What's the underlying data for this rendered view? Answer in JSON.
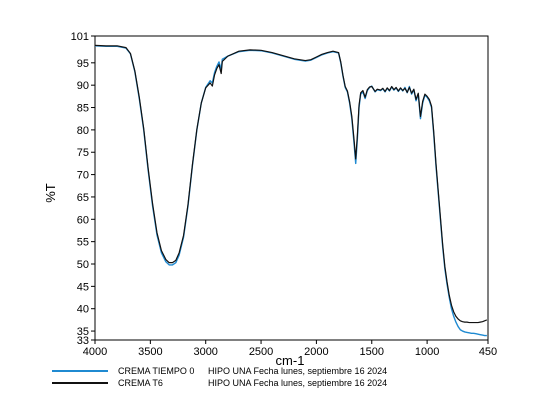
{
  "chart_data": {
    "type": "line",
    "title": "",
    "xlabel": "cm-1",
    "ylabel": "%T",
    "xlim": [
      4000,
      450
    ],
    "ylim": [
      33,
      101
    ],
    "x_ticks": [
      4000,
      3500,
      3000,
      2500,
      2000,
      1500,
      1000,
      450
    ],
    "x_tick_labels": [
      "4000",
      "3500",
      "3000",
      "2500",
      "2000",
      "1500",
      "1000",
      "450"
    ],
    "y_ticks": [
      101,
      95,
      90,
      85,
      80,
      75,
      70,
      65,
      60,
      55,
      50,
      45,
      40,
      35,
      33
    ],
    "y_tick_labels": [
      "101",
      "95",
      "90",
      "85",
      "80",
      "75",
      "70",
      "65",
      "60",
      "55",
      "50",
      "45",
      "40",
      "35",
      "33"
    ],
    "grid": false,
    "legend_position": "bottom",
    "series": [
      {
        "name": "CREMA TIEMPO 0",
        "description": "HIPO UNA Fecha lunes, septiembre 16 2024",
        "color": "#1f8ad1",
        "points": [
          [
            4000,
            98.8
          ],
          [
            3900,
            98.7
          ],
          [
            3800,
            98.7
          ],
          [
            3720,
            98.3
          ],
          [
            3680,
            97.0
          ],
          [
            3640,
            93.0
          ],
          [
            3600,
            87.0
          ],
          [
            3560,
            80.0
          ],
          [
            3520,
            71.0
          ],
          [
            3480,
            63.0
          ],
          [
            3440,
            56.5
          ],
          [
            3400,
            52.5
          ],
          [
            3360,
            50.5
          ],
          [
            3330,
            49.8
          ],
          [
            3300,
            49.8
          ],
          [
            3270,
            50.3
          ],
          [
            3240,
            52.0
          ],
          [
            3200,
            56.0
          ],
          [
            3160,
            63.0
          ],
          [
            3120,
            72.0
          ],
          [
            3080,
            80.0
          ],
          [
            3040,
            86.0
          ],
          [
            3000,
            89.5
          ],
          [
            2960,
            91.0
          ],
          [
            2940,
            90.5
          ],
          [
            2920,
            92.8
          ],
          [
            2900,
            94.2
          ],
          [
            2880,
            95.2
          ],
          [
            2860,
            93.5
          ],
          [
            2850,
            95.8
          ],
          [
            2800,
            96.5
          ],
          [
            2700,
            97.5
          ],
          [
            2600,
            97.8
          ],
          [
            2500,
            97.7
          ],
          [
            2400,
            97.2
          ],
          [
            2300,
            96.5
          ],
          [
            2200,
            95.8
          ],
          [
            2100,
            95.4
          ],
          [
            2050,
            95.6
          ],
          [
            2000,
            96.2
          ],
          [
            1950,
            96.8
          ],
          [
            1900,
            97.2
          ],
          [
            1850,
            97.5
          ],
          [
            1800,
            97.2
          ],
          [
            1780,
            95.0
          ],
          [
            1760,
            92.0
          ],
          [
            1740,
            89.5
          ],
          [
            1720,
            88.5
          ],
          [
            1700,
            86.0
          ],
          [
            1680,
            82.5
          ],
          [
            1660,
            77.0
          ],
          [
            1645,
            72.5
          ],
          [
            1630,
            78.0
          ],
          [
            1615,
            85.0
          ],
          [
            1600,
            88.0
          ],
          [
            1580,
            88.5
          ],
          [
            1560,
            87.0
          ],
          [
            1540,
            88.8
          ],
          [
            1520,
            89.5
          ],
          [
            1500,
            89.8
          ],
          [
            1470,
            88.5
          ],
          [
            1450,
            89.0
          ],
          [
            1420,
            88.8
          ],
          [
            1400,
            89.2
          ],
          [
            1380,
            88.5
          ],
          [
            1360,
            89.3
          ],
          [
            1340,
            88.7
          ],
          [
            1320,
            89.6
          ],
          [
            1300,
            88.9
          ],
          [
            1280,
            89.4
          ],
          [
            1260,
            88.6
          ],
          [
            1240,
            89.3
          ],
          [
            1220,
            88.7
          ],
          [
            1200,
            89.5
          ],
          [
            1180,
            88.3
          ],
          [
            1160,
            89.7
          ],
          [
            1140,
            88.0
          ],
          [
            1120,
            89.0
          ],
          [
            1100,
            86.5
          ],
          [
            1080,
            88.0
          ],
          [
            1060,
            82.5
          ],
          [
            1040,
            86.0
          ],
          [
            1020,
            87.8
          ],
          [
            1000,
            87.3
          ],
          [
            980,
            86.5
          ],
          [
            960,
            85.0
          ],
          [
            940,
            79.0
          ],
          [
            920,
            72.0
          ],
          [
            900,
            66.0
          ],
          [
            880,
            60.0
          ],
          [
            860,
            54.0
          ],
          [
            840,
            49.0
          ],
          [
            820,
            45.5
          ],
          [
            800,
            42.5
          ],
          [
            780,
            40.0
          ],
          [
            760,
            38.3
          ],
          [
            740,
            37.0
          ],
          [
            720,
            36.0
          ],
          [
            700,
            35.3
          ],
          [
            680,
            35.0
          ],
          [
            660,
            34.8
          ],
          [
            640,
            34.7
          ],
          [
            620,
            34.6
          ],
          [
            600,
            34.5
          ],
          [
            580,
            34.5
          ],
          [
            560,
            34.4
          ],
          [
            540,
            34.3
          ],
          [
            520,
            34.2
          ],
          [
            500,
            34.1
          ],
          [
            480,
            34.0
          ],
          [
            460,
            34.0
          ]
        ]
      },
      {
        "name": "CREMA T6",
        "description": "HIPO UNA Fecha lunes, septiembre 16 2024",
        "color": "#111111",
        "points": [
          [
            4000,
            98.9
          ],
          [
            3900,
            98.8
          ],
          [
            3800,
            98.8
          ],
          [
            3720,
            98.4
          ],
          [
            3680,
            97.1
          ],
          [
            3640,
            93.2
          ],
          [
            3600,
            87.3
          ],
          [
            3560,
            80.3
          ],
          [
            3520,
            71.4
          ],
          [
            3480,
            63.5
          ],
          [
            3440,
            57.0
          ],
          [
            3400,
            53.0
          ],
          [
            3360,
            51.0
          ],
          [
            3330,
            50.3
          ],
          [
            3300,
            50.3
          ],
          [
            3270,
            50.8
          ],
          [
            3240,
            52.5
          ],
          [
            3200,
            56.4
          ],
          [
            3160,
            63.3
          ],
          [
            3120,
            72.2
          ],
          [
            3080,
            80.1
          ],
          [
            3040,
            86.0
          ],
          [
            3000,
            89.4
          ],
          [
            2960,
            90.5
          ],
          [
            2940,
            89.8
          ],
          [
            2920,
            92.3
          ],
          [
            2900,
            93.7
          ],
          [
            2880,
            94.6
          ],
          [
            2860,
            92.6
          ],
          [
            2850,
            95.3
          ],
          [
            2800,
            96.5
          ],
          [
            2700,
            97.6
          ],
          [
            2600,
            97.9
          ],
          [
            2500,
            97.8
          ],
          [
            2400,
            97.3
          ],
          [
            2300,
            96.6
          ],
          [
            2200,
            95.9
          ],
          [
            2100,
            95.5
          ],
          [
            2050,
            95.7
          ],
          [
            2000,
            96.3
          ],
          [
            1950,
            96.9
          ],
          [
            1900,
            97.3
          ],
          [
            1850,
            97.6
          ],
          [
            1800,
            97.3
          ],
          [
            1780,
            95.2
          ],
          [
            1760,
            92.2
          ],
          [
            1740,
            89.7
          ],
          [
            1720,
            88.7
          ],
          [
            1700,
            86.3
          ],
          [
            1680,
            83.0
          ],
          [
            1660,
            77.8
          ],
          [
            1645,
            73.5
          ],
          [
            1630,
            78.8
          ],
          [
            1615,
            85.5
          ],
          [
            1600,
            88.3
          ],
          [
            1580,
            88.8
          ],
          [
            1560,
            87.3
          ],
          [
            1540,
            89.0
          ],
          [
            1520,
            89.6
          ],
          [
            1500,
            89.7
          ],
          [
            1470,
            88.6
          ],
          [
            1450,
            89.1
          ],
          [
            1420,
            88.9
          ],
          [
            1400,
            89.3
          ],
          [
            1380,
            88.6
          ],
          [
            1360,
            89.4
          ],
          [
            1340,
            88.8
          ],
          [
            1320,
            89.7
          ],
          [
            1300,
            89.0
          ],
          [
            1280,
            89.5
          ],
          [
            1260,
            88.7
          ],
          [
            1240,
            89.4
          ],
          [
            1220,
            88.8
          ],
          [
            1200,
            89.3
          ],
          [
            1180,
            88.4
          ],
          [
            1160,
            89.5
          ],
          [
            1140,
            88.2
          ],
          [
            1120,
            89.1
          ],
          [
            1100,
            86.8
          ],
          [
            1080,
            88.2
          ],
          [
            1060,
            83.0
          ],
          [
            1040,
            86.4
          ],
          [
            1020,
            88.0
          ],
          [
            1000,
            87.5
          ],
          [
            980,
            86.8
          ],
          [
            960,
            85.3
          ],
          [
            940,
            79.5
          ],
          [
            920,
            72.5
          ],
          [
            900,
            66.5
          ],
          [
            880,
            60.5
          ],
          [
            860,
            54.5
          ],
          [
            840,
            49.5
          ],
          [
            820,
            46.0
          ],
          [
            800,
            43.0
          ],
          [
            780,
            40.8
          ],
          [
            760,
            39.3
          ],
          [
            740,
            38.3
          ],
          [
            720,
            37.7
          ],
          [
            700,
            37.3
          ],
          [
            680,
            37.1
          ],
          [
            660,
            37.0
          ],
          [
            640,
            37.0
          ],
          [
            620,
            36.9
          ],
          [
            600,
            36.9
          ],
          [
            580,
            36.9
          ],
          [
            560,
            36.9
          ],
          [
            540,
            36.9
          ],
          [
            520,
            37.0
          ],
          [
            500,
            37.1
          ],
          [
            480,
            37.3
          ],
          [
            460,
            37.5
          ]
        ]
      }
    ]
  }
}
